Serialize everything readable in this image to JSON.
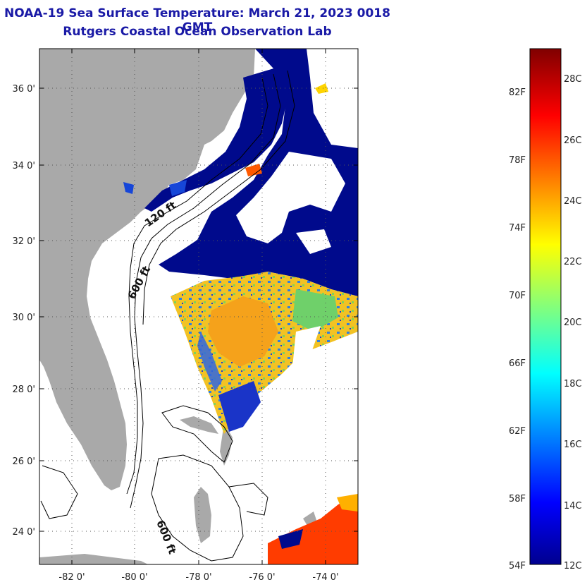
{
  "header": {
    "title": "NOAA-19 Sea Surface Temperature:  March 21, 2023 0018 GMT",
    "subtitle": "Rutgers Coastal Ocean Observation Lab"
  },
  "map": {
    "lat_labels": [
      "36 0'",
      "34 0'",
      "32 0'",
      "30 0'",
      "28 0'",
      "26 0'",
      "24 0'"
    ],
    "lon_labels": [
      "-82 0'",
      "-80 0'",
      "-78 0'",
      "-76 0'",
      "-74 0'"
    ],
    "contours": {
      "c120": "120 ft",
      "c600a": "600 ft",
      "c600b": "600 ft"
    },
    "colors": {
      "land": "#a9a9a9",
      "cold": "#000a8c",
      "warm": "#ffd400",
      "hot": "#ff3c00"
    }
  },
  "colorbar": {
    "fahrenheit": [
      "82F",
      "78F",
      "74F",
      "70F",
      "66F",
      "62F",
      "58F",
      "54F"
    ],
    "celsius": [
      "28C",
      "26C",
      "24C",
      "22C",
      "20C",
      "18C",
      "16C",
      "14C",
      "12C"
    ]
  }
}
